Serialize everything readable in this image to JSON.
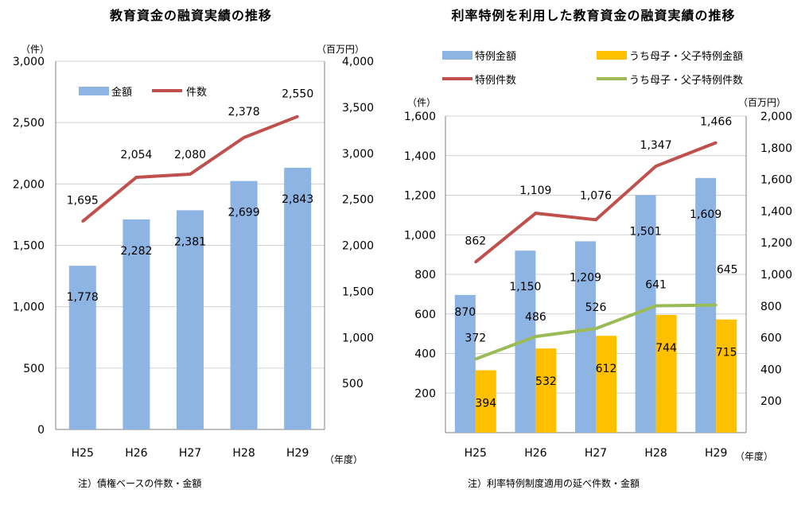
{
  "charts": [
    {
      "title": "教育資金の融資実績の推移",
      "note": "注）債権ベースの件数・金額",
      "left_unit": "（件）",
      "right_unit": "（百万円）",
      "x_unit": "（年度）"
    },
    {
      "title": "利率特例を利用した教育資金の融資実績の推移",
      "note": "注）利率特例制度適用の延べ件数・金額",
      "left_unit": "（件）",
      "right_unit": "（百万円）",
      "x_unit": "（年度）"
    }
  ],
  "chart_data": [
    {
      "type": "bar",
      "categories": [
        "H25",
        "H26",
        "H27",
        "H28",
        "H29"
      ],
      "series": [
        {
          "name": "金額",
          "kind": "bar",
          "axis": "right",
          "color": "#8eb4e3",
          "values": [
            1778,
            2282,
            2381,
            2699,
            2843
          ],
          "labels": [
            "1,778",
            "2,282",
            "2,381",
            "2,699",
            "2,843"
          ]
        },
        {
          "name": "件数",
          "kind": "line",
          "axis": "left",
          "color": "#c0504d",
          "values": [
            1695,
            2054,
            2080,
            2378,
            2550
          ],
          "labels": [
            "1,695",
            "2,054",
            "2,080",
            "2,378",
            "2,550"
          ]
        }
      ],
      "left_axis": {
        "min": 0,
        "max": 3000,
        "ticks": [
          "0",
          "500",
          "1,000",
          "1,500",
          "2,000",
          "2,500",
          "3,000"
        ]
      },
      "right_axis": {
        "min": 0,
        "max": 4000,
        "ticks": [
          "",
          "500",
          "1,000",
          "1,500",
          "2,000",
          "2,500",
          "3,000",
          "3,500",
          "4,000"
        ]
      },
      "grid": true,
      "legend": "top-left"
    },
    {
      "type": "bar",
      "categories": [
        "H25",
        "H26",
        "H27",
        "H28",
        "H29"
      ],
      "series": [
        {
          "name": "特例金額",
          "kind": "bar",
          "axis": "right",
          "color": "#8eb4e3",
          "values": [
            870,
            1150,
            1209,
            1501,
            1609
          ],
          "labels": [
            "870",
            "1,150",
            "1,209",
            "1,501",
            "1,609"
          ]
        },
        {
          "name": "うち母子・父子特例金額",
          "kind": "bar",
          "axis": "right",
          "color": "#ffc000",
          "values": [
            394,
            532,
            612,
            744,
            715
          ],
          "labels": [
            "394",
            "532",
            "612",
            "744",
            "715"
          ]
        },
        {
          "name": "特例件数",
          "kind": "line",
          "axis": "left",
          "color": "#c0504d",
          "values": [
            862,
            1109,
            1076,
            1347,
            1466
          ],
          "labels": [
            "862",
            "1,109",
            "1,076",
            "1,347",
            "1,466"
          ]
        },
        {
          "name": "うち母子・父子特例件数",
          "kind": "line",
          "axis": "left",
          "color": "#9bbb59",
          "values": [
            372,
            486,
            526,
            641,
            645
          ],
          "labels": [
            "372",
            "486",
            "526",
            "641",
            "645"
          ]
        }
      ],
      "left_axis": {
        "min": 0,
        "max": 1600,
        "ticks": [
          "",
          "200",
          "400",
          "600",
          "800",
          "1,000",
          "1,200",
          "1,400",
          "1,600"
        ]
      },
      "right_axis": {
        "min": 0,
        "max": 2000,
        "ticks": [
          "",
          "200",
          "400",
          "600",
          "800",
          "1,000",
          "1,200",
          "1,400",
          "1,600",
          "1,800",
          "2,000"
        ]
      },
      "grid": true,
      "legend": "top"
    }
  ]
}
